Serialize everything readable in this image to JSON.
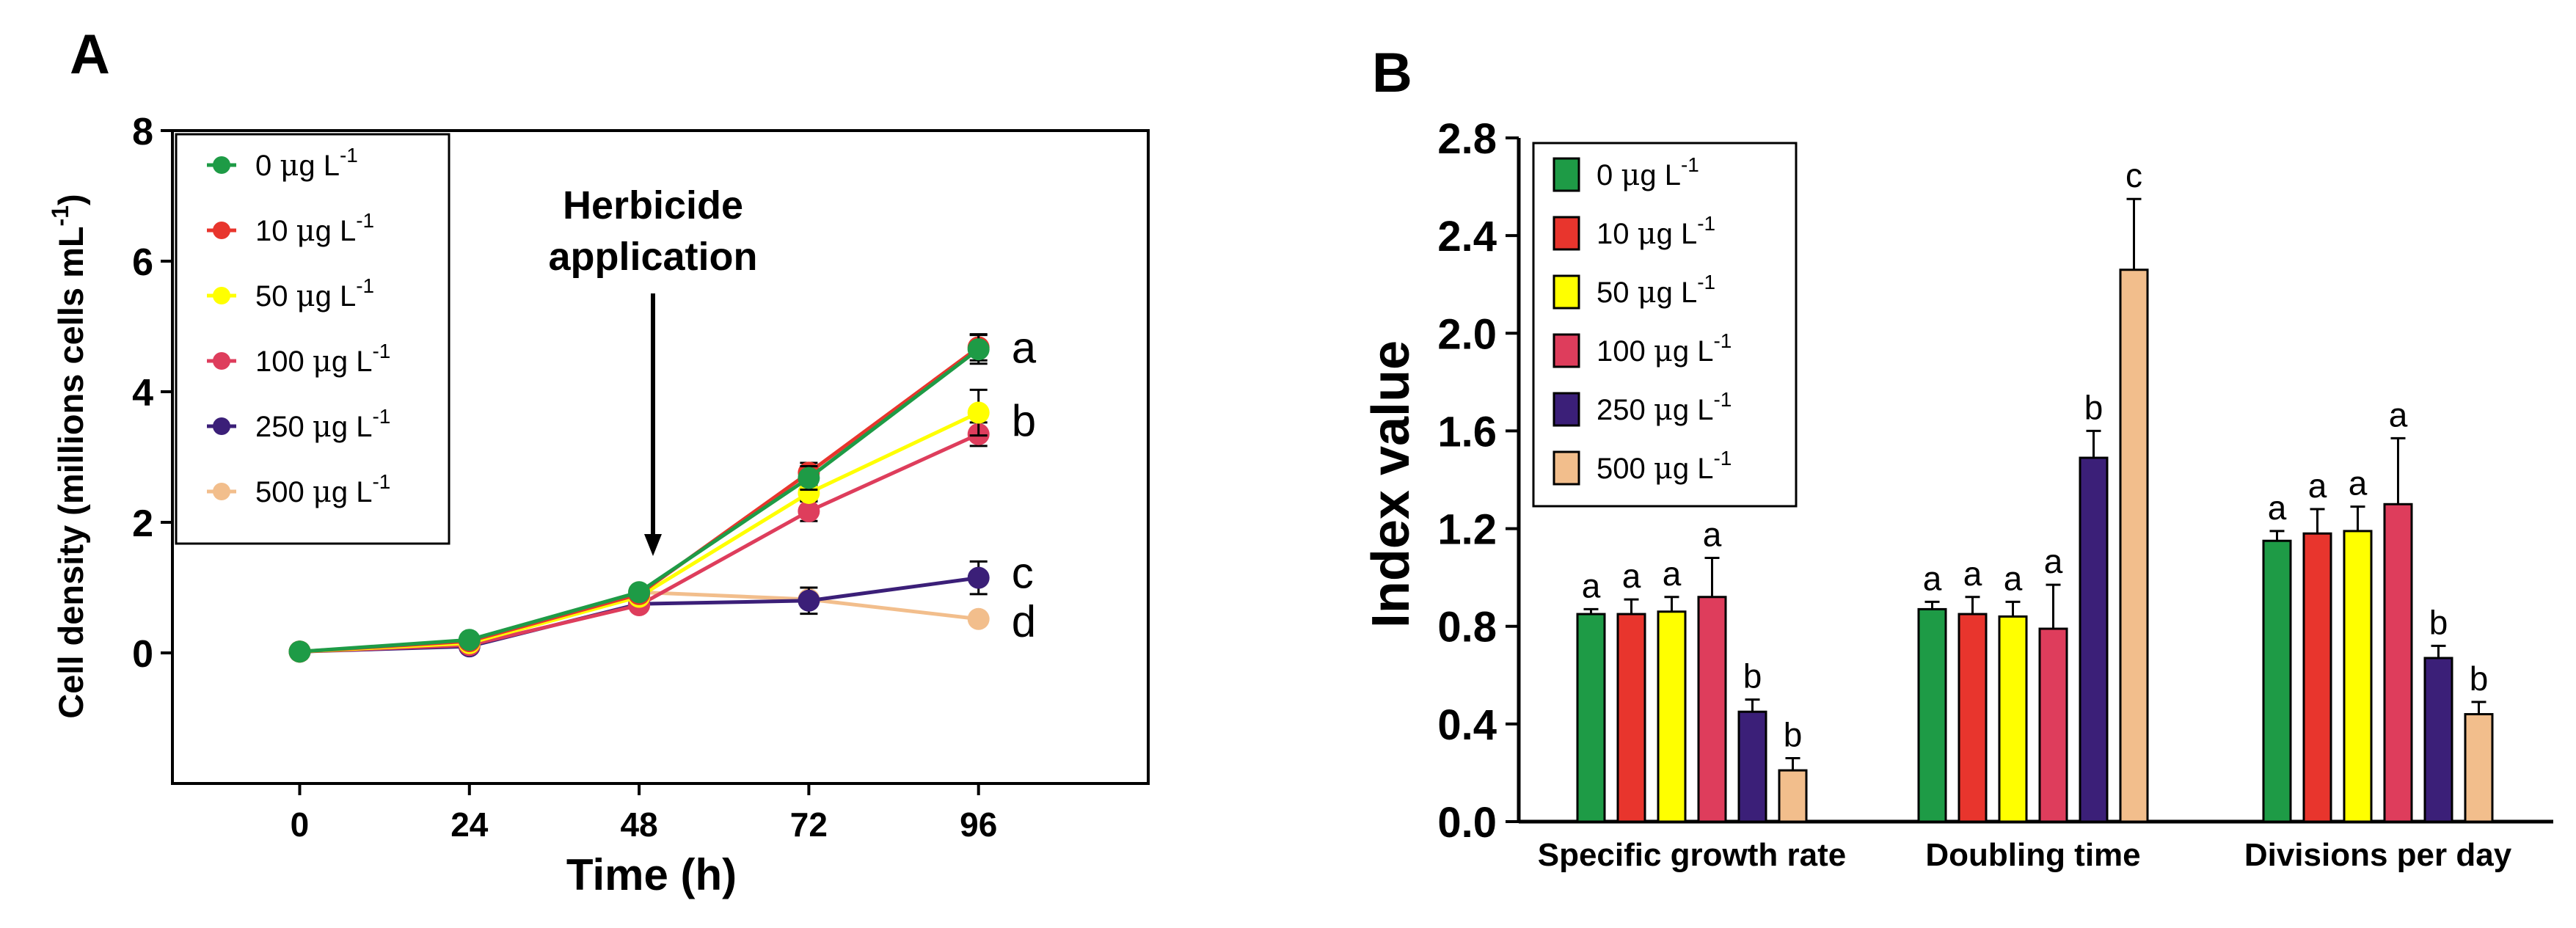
{
  "panel_labels": {
    "a": "A",
    "b": "B"
  },
  "colors": {
    "0": "#1e9b46",
    "10": "#e8352d",
    "50": "#ffff00",
    "100": "#de3d5c",
    "250": "#3b1f78",
    "500": "#f2be8c"
  },
  "legend": [
    {
      "key": "0",
      "prefix": "0 ",
      "mu": "μ",
      "unit": "g L",
      "sup": "-1"
    },
    {
      "key": "10",
      "prefix": "10 ",
      "mu": "μ",
      "unit": "g L",
      "sup": "-1"
    },
    {
      "key": "50",
      "prefix": "50 ",
      "mu": "μ",
      "unit": "g L",
      "sup": "-1"
    },
    {
      "key": "100",
      "prefix": "100 ",
      "mu": "μ",
      "unit": "g L",
      "sup": "-1"
    },
    {
      "key": "250",
      "prefix": "250 ",
      "mu": "μ",
      "unit": "g L",
      "sup": "-1"
    },
    {
      "key": "500",
      "prefix": "500 ",
      "mu": "μ",
      "unit": "g L",
      "sup": "-1"
    }
  ],
  "chart_data": [
    {
      "id": "A",
      "type": "line",
      "xlabel": "Time (h)",
      "ylabel_main": "Cell density (millions cells mL",
      "ylabel_sup": "-1",
      "ylabel_end": ")",
      "x": [
        0,
        24,
        48,
        72,
        96
      ],
      "xlim": [
        -18,
        120
      ],
      "ylim": [
        -2,
        8
      ],
      "yticks": [
        0,
        2,
        4,
        6,
        8
      ],
      "annotation": {
        "line1": "Herbicide",
        "line2": "application",
        "x": 48
      },
      "series": [
        {
          "key": "0",
          "values": [
            0.02,
            0.2,
            0.93,
            2.68,
            4.65
          ],
          "errors": [
            0.02,
            0.05,
            0.08,
            0.18,
            0.22
          ]
        },
        {
          "key": "10",
          "values": [
            0.02,
            0.18,
            0.9,
            2.76,
            4.68
          ],
          "errors": [
            0.02,
            0.05,
            0.08,
            0.15,
            0.2
          ]
        },
        {
          "key": "50",
          "values": [
            0.02,
            0.15,
            0.86,
            2.45,
            3.68
          ],
          "errors": [
            0.02,
            0.04,
            0.08,
            0.12,
            0.35
          ]
        },
        {
          "key": "100",
          "values": [
            0.02,
            0.12,
            0.73,
            2.17,
            3.35
          ],
          "errors": [
            0.02,
            0.04,
            0.06,
            0.15,
            0.18
          ]
        },
        {
          "key": "250",
          "values": [
            0.02,
            0.1,
            0.75,
            0.8,
            1.15
          ],
          "errors": [
            0.02,
            0.04,
            0.05,
            0.2,
            0.25
          ]
        },
        {
          "key": "500",
          "values": [
            0.02,
            0.12,
            0.93,
            0.82,
            0.52
          ],
          "errors": [
            0.02,
            0.04,
            0.05,
            0.05,
            0.05
          ]
        }
      ],
      "group_labels": [
        {
          "text": "a",
          "y": 4.67
        },
        {
          "text": "b",
          "y": 3.55
        },
        {
          "text": "c",
          "y": 1.22
        },
        {
          "text": "d",
          "y": 0.48
        }
      ]
    },
    {
      "id": "B",
      "type": "bar",
      "ylabel": "Index value",
      "ylim": [
        0,
        2.8
      ],
      "yticks": [
        "0.0",
        "0.4",
        "0.8",
        "1.2",
        "1.6",
        "2.0",
        "2.4",
        "2.8"
      ],
      "categories": [
        "Specific growth rate",
        "Doubling time",
        "Divisions per day"
      ],
      "series_keys": [
        "0",
        "10",
        "50",
        "100",
        "250",
        "500"
      ],
      "values": [
        [
          0.85,
          0.85,
          0.86,
          0.92,
          0.45,
          0.21
        ],
        [
          0.87,
          0.85,
          0.84,
          0.79,
          1.49,
          2.26
        ],
        [
          1.15,
          1.18,
          1.19,
          1.3,
          0.67,
          0.44
        ]
      ],
      "errors": [
        [
          0.02,
          0.06,
          0.06,
          0.16,
          0.05,
          0.05
        ],
        [
          0.03,
          0.07,
          0.06,
          0.18,
          0.11,
          0.29
        ],
        [
          0.04,
          0.1,
          0.1,
          0.27,
          0.05,
          0.05
        ]
      ],
      "letters": [
        [
          "a",
          "a",
          "a",
          "a",
          "b",
          "b"
        ],
        [
          "a",
          "a",
          "a",
          "a",
          "b",
          "c"
        ],
        [
          "a",
          "a",
          "a",
          "a",
          "b",
          "b"
        ]
      ]
    }
  ]
}
